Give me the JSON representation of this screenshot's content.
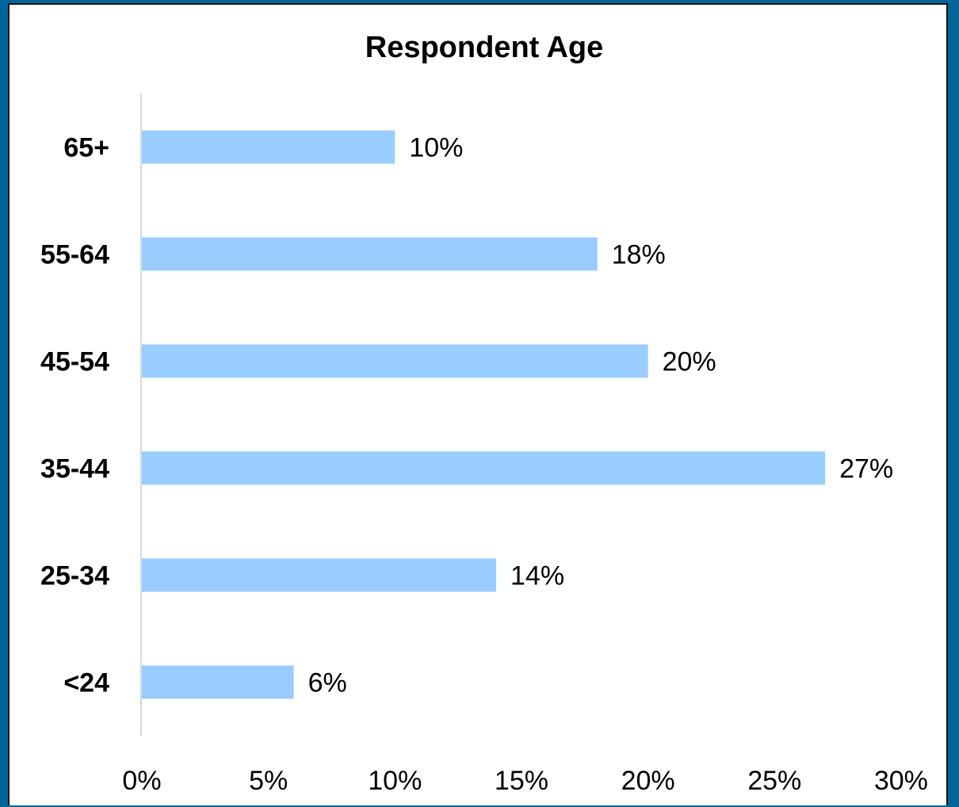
{
  "chart_data": {
    "type": "bar",
    "orientation": "horizontal",
    "title": "Respondent Age",
    "xlabel": "",
    "ylabel": "",
    "categories": [
      "65+",
      "55-64",
      "45-54",
      "35-44",
      "25-34",
      "<24"
    ],
    "values": [
      10,
      18,
      20,
      27,
      14,
      6
    ],
    "value_labels": [
      "10%",
      "18%",
      "20%",
      "27%",
      "14%",
      "6%"
    ],
    "xlim": [
      0,
      30
    ],
    "ticks": [
      0,
      5,
      10,
      15,
      20,
      25,
      30
    ],
    "tick_labels": [
      "0%",
      "5%",
      "10%",
      "15%",
      "20%",
      "25%",
      "30%"
    ],
    "grid": false,
    "legend": "none",
    "colors": {
      "bar": "#99CCFF",
      "axis": "#D9D9D9",
      "frame_border": "#006699",
      "background": "#FFFFFF"
    }
  }
}
